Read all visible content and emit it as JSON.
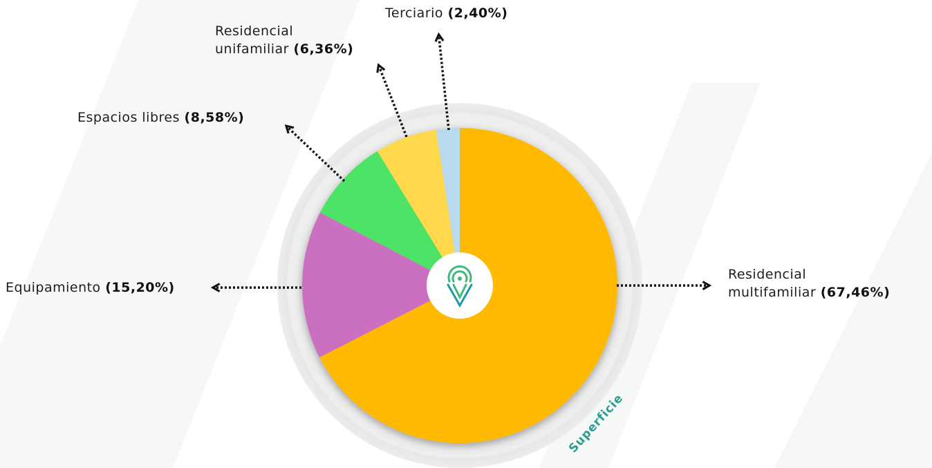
{
  "chart_data": {
    "type": "pie",
    "categories": [
      "Residencial multifamiliar",
      "Equipamiento",
      "Espacios libres",
      "Residencial unifamiliar",
      "Terciario"
    ],
    "values": [
      67.46,
      15.2,
      8.58,
      6.36,
      2.4
    ],
    "value_labels": [
      "(67,46%)",
      "(15,20%)",
      "(8,58%)",
      "(6,36%)",
      "(2,40%)"
    ],
    "colors": [
      "#ffb900",
      "#cb70c0",
      "#4de366",
      "#ffd84b",
      "#b9d9ee"
    ],
    "ring_label": "Superficie"
  }
}
